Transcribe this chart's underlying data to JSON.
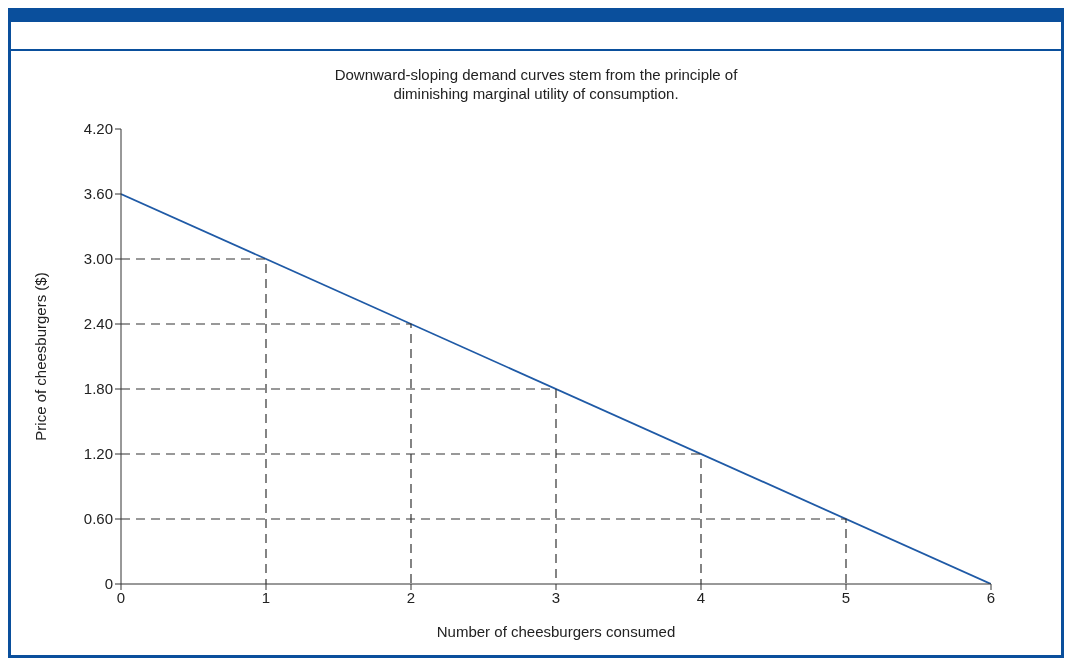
{
  "chart_data": {
    "type": "line",
    "title": "Downward-sloping demand curves stem from the principle of\ndiminishing marginal utility of consumption.",
    "xlabel": "Number of cheesburgers consumed",
    "ylabel": "Price of cheesburgers ($)",
    "xlim": [
      0,
      6
    ],
    "xticks": [
      0,
      1,
      2,
      3,
      4,
      5,
      6
    ],
    "ylim": [
      0,
      4.2
    ],
    "yticks": [
      0,
      {
        "value": 0.6,
        "label": "0.60"
      },
      {
        "value": 1.2,
        "label": "1.20"
      },
      {
        "value": 1.8,
        "label": "1.80"
      },
      {
        "value": 2.4,
        "label": "2.40"
      },
      {
        "value": 3,
        "label": "3.00"
      },
      {
        "value": 3.6,
        "label": "3.60"
      },
      {
        "value": 4.2,
        "label": "4.20"
      }
    ],
    "marker": "none",
    "series": [
      {
        "color": "#1f5aa6",
        "x": [
          0,
          6
        ],
        "values": [
          3.6,
          0
        ]
      },
      {
        "color": "#333333",
        "line_style": "dashed",
        "x": [
          0,
          1,
          1
        ],
        "values": [
          3,
          3,
          0
        ]
      },
      {
        "color": "#333333",
        "line_style": "dashed",
        "x": [
          0,
          2,
          2
        ],
        "values": [
          2.4,
          2.4,
          0
        ]
      },
      {
        "color": "#333333",
        "line_style": "dashed",
        "x": [
          0,
          3,
          3
        ],
        "values": [
          1.8,
          1.8,
          0
        ]
      },
      {
        "color": "#333333",
        "line_style": "dashed",
        "x": [
          0,
          4,
          4
        ],
        "values": [
          1.2,
          1.2,
          0
        ]
      },
      {
        "color": "#333333",
        "line_style": "dashed",
        "x": [
          0,
          5,
          5
        ],
        "values": [
          0.6,
          0.6,
          0
        ]
      }
    ]
  }
}
